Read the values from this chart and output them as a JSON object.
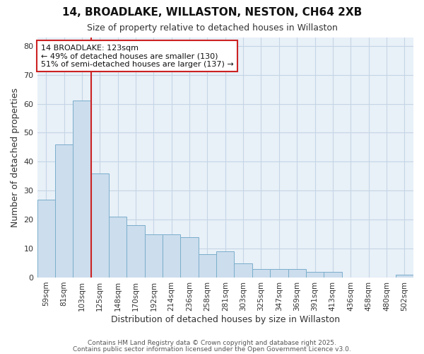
{
  "title": "14, BROADLAKE, WILLASTON, NESTON, CH64 2XB",
  "subtitle": "Size of property relative to detached houses in Willaston",
  "xlabel": "Distribution of detached houses by size in Willaston",
  "ylabel": "Number of detached properties",
  "categories": [
    "59sqm",
    "81sqm",
    "103sqm",
    "125sqm",
    "148sqm",
    "170sqm",
    "192sqm",
    "214sqm",
    "236sqm",
    "258sqm",
    "281sqm",
    "303sqm",
    "325sqm",
    "347sqm",
    "369sqm",
    "391sqm",
    "413sqm",
    "436sqm",
    "458sqm",
    "480sqm",
    "502sqm"
  ],
  "values": [
    27,
    46,
    61,
    36,
    21,
    18,
    15,
    15,
    14,
    8,
    9,
    5,
    3,
    3,
    3,
    2,
    2,
    0,
    0,
    0,
    1
  ],
  "bar_color": "#ccdded",
  "bar_edge_color": "#7aaecb",
  "grid_color": "#c5d5e5",
  "background_color": "#ffffff",
  "plot_bg_color": "#e8f0f8",
  "red_line_index": 3,
  "annotation_title": "14 BROADLAKE: 123sqm",
  "annotation_line1": "← 49% of detached houses are smaller (130)",
  "annotation_line2": "51% of semi-detached houses are larger (137) →",
  "ylim": [
    0,
    83
  ],
  "yticks": [
    0,
    10,
    20,
    30,
    40,
    50,
    60,
    70,
    80
  ],
  "footnote1": "Contains HM Land Registry data © Crown copyright and database right 2025.",
  "footnote2": "Contains public sector information licensed under the Open Government Licence v3.0."
}
